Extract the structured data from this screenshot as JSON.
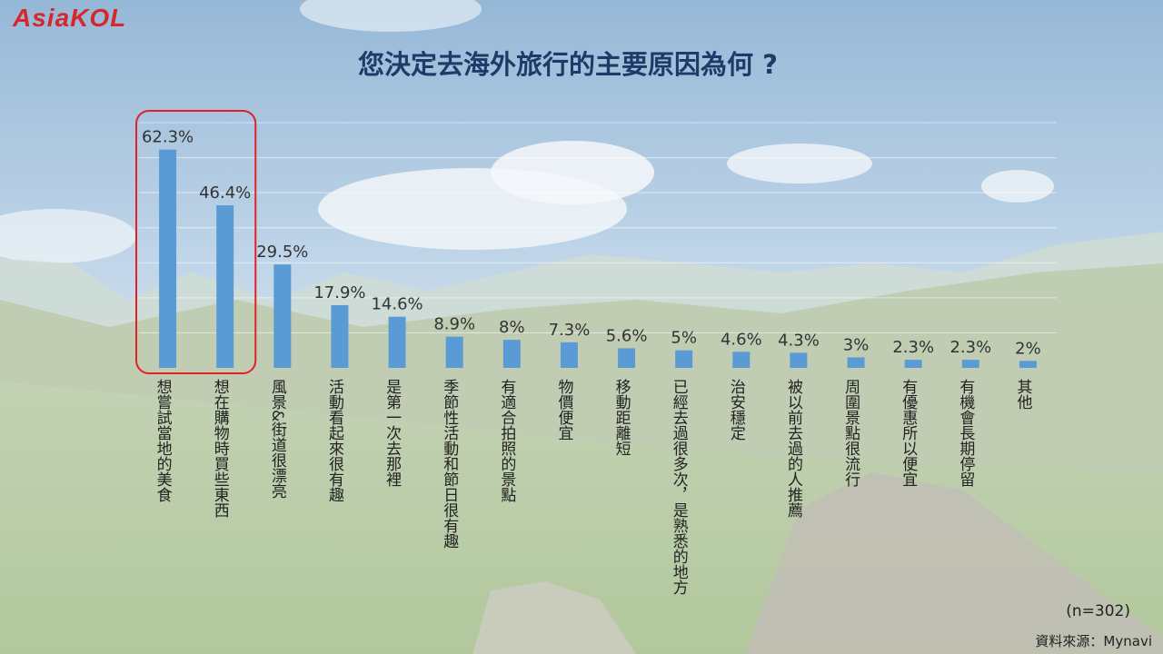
{
  "brand": {
    "logo_text": "AsiaKOL"
  },
  "chart_data": {
    "type": "bar",
    "title": "您決定去海外旅行的主要原因為何 ?",
    "categories": [
      "想嘗試當地的美食",
      "想在購物時買些東西",
      "風景&街道很漂亮",
      "活動看起來很有趣",
      "是第一次去那裡",
      "季節性活動和節日很有趣",
      "有適合拍照的景點",
      "物價便宜",
      "移動距離短",
      "已經去過很多次，是熟悉的地方",
      "治安穩定",
      "被以前去過的人推薦",
      "周圍景點很流行",
      "有優惠所以便宜",
      "有機會長期停留",
      "其他"
    ],
    "values": [
      62.3,
      46.4,
      29.5,
      17.9,
      14.6,
      8.9,
      8,
      7.3,
      5.6,
      5,
      4.6,
      4.3,
      3,
      2.3,
      2.3,
      2
    ],
    "value_labels": [
      "62.3%",
      "46.4%",
      "29.5%",
      "17.9%",
      "14.6%",
      "8.9%",
      "8%",
      "7.3%",
      "5.6%",
      "5%",
      "4.6%",
      "4.3%",
      "3%",
      "2.3%",
      "2.3%",
      "2%"
    ],
    "ylim": [
      0,
      70
    ],
    "grid": true,
    "highlighted_categories": [
      0,
      1
    ],
    "bar_color": "#5b9bd5",
    "highlight_color": "#e3202a"
  },
  "footer": {
    "sample_size": "(n=302)",
    "source": "資料來源：Mynavi"
  }
}
